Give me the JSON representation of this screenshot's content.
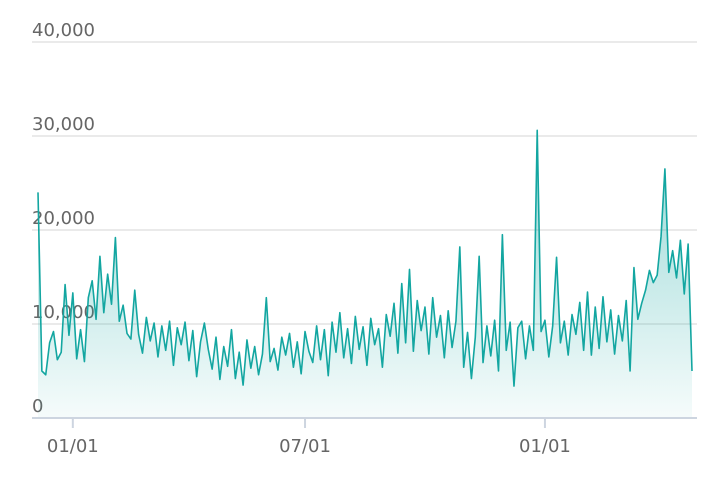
{
  "chart_data": {
    "type": "area",
    "categories": [
      null,
      null,
      null,
      null,
      null,
      null,
      null,
      null,
      null,
      "01/01",
      null,
      null,
      null,
      null,
      null,
      null,
      null,
      null,
      null,
      null,
      null,
      null,
      null,
      null,
      null,
      null,
      null,
      null,
      null,
      null,
      null,
      null,
      null,
      null,
      null,
      null,
      null,
      null,
      null,
      null,
      null,
      null,
      null,
      null,
      null,
      null,
      null,
      null,
      null,
      null,
      null,
      null,
      null,
      null,
      null,
      null,
      null,
      null,
      null,
      null,
      null,
      null,
      null,
      null,
      null,
      null,
      null,
      null,
      null,
      "07/01",
      null,
      null,
      null,
      null,
      null,
      null,
      null,
      null,
      null,
      null,
      null,
      null,
      null,
      null,
      null,
      null,
      null,
      null,
      null,
      null,
      null,
      null,
      null,
      null,
      null,
      null,
      null,
      null,
      null,
      null,
      null,
      null,
      null,
      null,
      null,
      null,
      null,
      null,
      null,
      null,
      null,
      null,
      null,
      null,
      null,
      null,
      null,
      null,
      null,
      null,
      null,
      null,
      null,
      null,
      null,
      null,
      null,
      null,
      null,
      null,
      null,
      "01/01",
      null,
      null,
      null,
      null,
      null,
      null,
      null,
      null,
      null,
      null,
      null,
      null,
      null,
      null,
      null,
      null,
      null,
      null,
      null,
      null,
      null,
      null,
      null,
      null,
      null,
      null,
      null,
      null,
      null,
      null,
      null,
      null,
      null,
      null,
      null,
      null,
      null,
      null
    ],
    "series": [
      {
        "color": "#13a6a1",
        "values": [
          24000,
          5000,
          4600,
          8000,
          9200,
          6200,
          7000,
          14200,
          8800,
          13300,
          6300,
          9400,
          6000,
          12800,
          14600,
          10500,
          17200,
          11200,
          15300,
          12100,
          19200,
          10300,
          12000,
          9000,
          8400,
          13600,
          8900,
          6900,
          10700,
          8200,
          10100,
          6500,
          9800,
          7200,
          10300,
          5600,
          9600,
          7800,
          10200,
          6100,
          9300,
          4400,
          8100,
          10100,
          7300,
          5200,
          8600,
          4100,
          7600,
          5500,
          9400,
          4200,
          7000,
          3500,
          8300,
          5300,
          7600,
          4600,
          6800,
          12800,
          6000,
          7400,
          5100,
          8600,
          6700,
          9000,
          5400,
          8100,
          4700,
          9200,
          7100,
          5900,
          9800,
          6200,
          9400,
          4500,
          10200,
          7000,
          11200,
          6400,
          9500,
          5800,
          10800,
          7300,
          9700,
          5600,
          10600,
          7800,
          9500,
          5400,
          11000,
          8700,
          12200,
          6900,
          14300,
          8000,
          15800,
          7100,
          12500,
          9300,
          11800,
          6800,
          12800,
          8600,
          10900,
          6400,
          11400,
          7500,
          10300,
          18200,
          5400,
          9100,
          4200,
          8600,
          17200,
          5900,
          9800,
          6600,
          10400,
          5000,
          19500,
          7200,
          10200,
          3400,
          9600,
          10300,
          6300,
          9800,
          7200,
          30600,
          9200,
          10400,
          6500,
          9800,
          17100,
          8000,
          10300,
          6700,
          11000,
          8900,
          12300,
          7200,
          13400,
          6700,
          11800,
          7400,
          12900,
          8100,
          11500,
          6800,
          10900,
          8200,
          12500,
          5000,
          16000,
          10500,
          12200,
          13600,
          15700,
          14400,
          15200,
          19300,
          26500,
          15500,
          17800,
          14900,
          18900,
          13200,
          18500,
          5000
        ]
      }
    ],
    "ylim": [
      0,
      40000
    ],
    "yticks": [
      0,
      {
        "value": 10000,
        "label": "10,000"
      },
      {
        "value": 20000,
        "label": "20,000"
      },
      {
        "value": 30000,
        "label": "30,000"
      },
      {
        "value": 40000,
        "label": "40,000"
      }
    ],
    "grid": true
  }
}
